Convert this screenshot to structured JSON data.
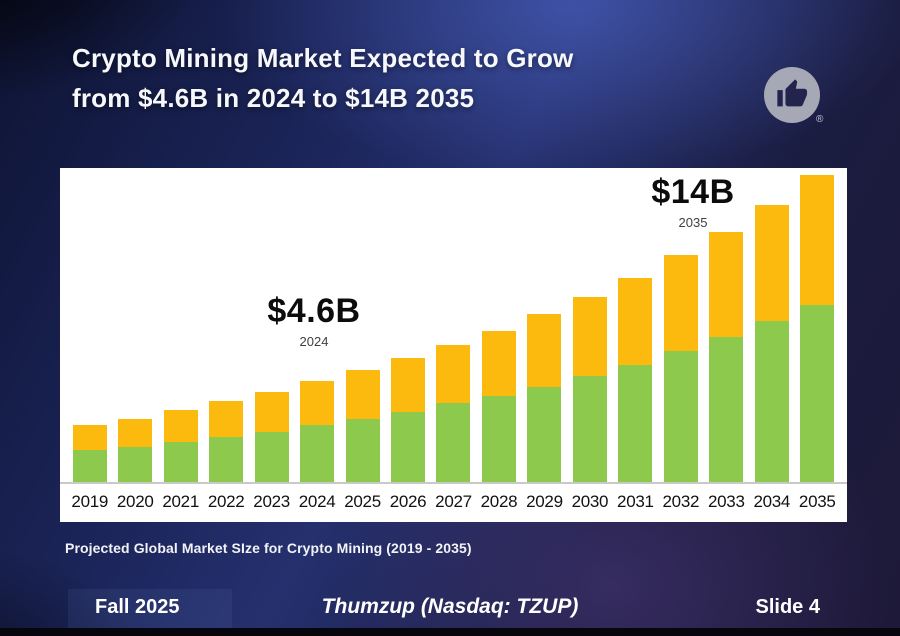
{
  "slide": {
    "title_line1": "Crypto Mining Market Expected to Grow",
    "title_line2": "from $4.6B in 2024 to $14B 2035",
    "footer": {
      "left": "Fall 2025",
      "center": "Thumzup (Nasdaq: TZUP)",
      "right": "Slide 4"
    },
    "logo": {
      "name": "thumbs-up",
      "registered": "®"
    }
  },
  "chart_data": {
    "type": "bar",
    "stacked": true,
    "unit": "USD billions",
    "title": "Projected Global Market SIze for Crypto Mining (2019 - 2035)",
    "categories": [
      "2019",
      "2020",
      "2021",
      "2022",
      "2023",
      "2024",
      "2025",
      "2026",
      "2027",
      "2028",
      "2029",
      "2030",
      "2031",
      "2032",
      "2033",
      "2034",
      "2035"
    ],
    "series": [
      {
        "name": "bottom-segment",
        "color": "#8DC94C",
        "values": [
          1.45,
          1.6,
          1.85,
          2.05,
          2.3,
          2.6,
          2.9,
          3.2,
          3.6,
          3.95,
          4.35,
          4.85,
          5.35,
          6.0,
          6.6,
          7.35,
          8.1
        ]
      },
      {
        "name": "top-segment",
        "color": "#FBBA0D",
        "values": [
          1.15,
          1.3,
          1.45,
          1.65,
          1.8,
          2.0,
          2.2,
          2.45,
          2.65,
          2.95,
          3.3,
          3.6,
          3.95,
          4.35,
          4.8,
          5.3,
          5.9
        ]
      }
    ],
    "totals": [
      2.6,
      2.9,
      3.3,
      3.7,
      4.1,
      4.6,
      5.1,
      5.65,
      6.25,
      6.9,
      7.65,
      8.45,
      9.3,
      10.35,
      11.4,
      12.65,
      14.0
    ],
    "annotations": [
      {
        "label": "$4.6B",
        "sublabel": "2024"
      },
      {
        "label": "$14B",
        "sublabel": "2035"
      }
    ],
    "ylim": [
      0,
      14.5
    ],
    "legend": "none",
    "grid": false,
    "axis_line_color": "#c9c9c9"
  }
}
